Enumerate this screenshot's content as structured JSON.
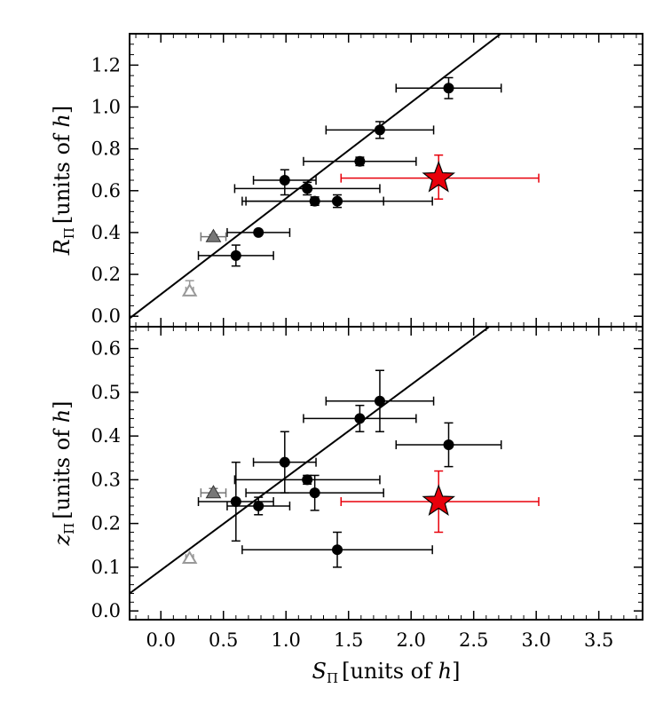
{
  "chart_data": [
    {
      "type": "scatter",
      "panel": "top",
      "ylabel_main": "R",
      "ylabel_sub": "Π",
      "ylabel_rest": "[units of ",
      "ylabel_italic": "h",
      "ylabel_close": "]",
      "xlim": [
        -0.25,
        3.85
      ],
      "ylim": [
        -0.05,
        1.35
      ],
      "yticks": [
        "0.0",
        "0.2",
        "0.4",
        "0.6",
        "0.8",
        "1.0",
        "1.2"
      ],
      "fit_line": {
        "x1": -0.25,
        "y1": -0.01,
        "x2": 3.85,
        "y2": 1.87
      },
      "series": [
        {
          "name": "black points",
          "marker": "circle",
          "color": "#000000",
          "points": [
            {
              "x": 2.3,
              "y": 1.09,
              "xerr": [
                0.42,
                0.42
              ],
              "yerr": [
                0.05,
                0.05
              ]
            },
            {
              "x": 1.75,
              "y": 0.89,
              "xerr": [
                0.43,
                0.43
              ],
              "yerr": [
                0.04,
                0.04
              ]
            },
            {
              "x": 1.59,
              "y": 0.74,
              "xerr": [
                0.45,
                0.45
              ],
              "yerr": [
                0.02,
                0.02
              ]
            },
            {
              "x": 0.99,
              "y": 0.65,
              "xerr": [
                0.25,
                0.25
              ],
              "yerr": [
                0.07,
                0.05
              ]
            },
            {
              "x": 1.17,
              "y": 0.61,
              "xerr": [
                0.58,
                0.58
              ],
              "yerr": [
                0.03,
                0.03
              ]
            },
            {
              "x": 1.23,
              "y": 0.55,
              "xerr": [
                0.55,
                0.55
              ],
              "yerr": [
                0.02,
                0.02
              ]
            },
            {
              "x": 1.41,
              "y": 0.55,
              "xerr": [
                0.76,
                0.76
              ],
              "yerr": [
                0.03,
                0.03
              ]
            },
            {
              "x": 0.78,
              "y": 0.4,
              "xerr": [
                0.25,
                0.25
              ],
              "yerr": [
                0.01,
                0.01
              ]
            },
            {
              "x": 0.6,
              "y": 0.29,
              "xerr": [
                0.3,
                0.3
              ],
              "yerr": [
                0.05,
                0.05
              ]
            }
          ]
        },
        {
          "name": "red star",
          "marker": "star",
          "color": "#e8000b",
          "points": [
            {
              "x": 2.22,
              "y": 0.66,
              "xerr": [
                0.78,
                0.8
              ],
              "yerr": [
                0.1,
                0.11
              ]
            }
          ]
        },
        {
          "name": "gray triangle",
          "marker": "triangle",
          "color": "#777777",
          "points": [
            {
              "x": 0.42,
              "y": 0.38,
              "xerr": [
                0.1,
                0.1
              ],
              "yerr": [
                0.01,
                0.01
              ]
            }
          ]
        },
        {
          "name": "open triangle",
          "marker": "triangle-open",
          "color": "#999999",
          "points": [
            {
              "x": 0.23,
              "y": 0.12,
              "xerr": [
                0.03,
                0.03
              ],
              "yerr": [
                0.02,
                0.05
              ]
            }
          ]
        }
      ]
    },
    {
      "type": "scatter",
      "panel": "bottom",
      "ylabel_main": "z",
      "ylabel_sub": "Π",
      "ylabel_rest": "[units of ",
      "ylabel_italic": "h",
      "ylabel_close": "]",
      "xlabel_main": "S",
      "xlabel_sub": "Π",
      "xlabel_rest": "[units of ",
      "xlabel_italic": "h",
      "xlabel_close": "]",
      "xlim": [
        -0.25,
        3.85
      ],
      "ylim": [
        -0.02,
        0.65
      ],
      "xticks": [
        "0.0",
        "0.5",
        "1.0",
        "1.5",
        "2.0",
        "2.5",
        "3.0",
        "3.5"
      ],
      "yticks": [
        "0.0",
        "0.1",
        "0.2",
        "0.3",
        "0.4",
        "0.5",
        "0.6"
      ],
      "fit_line": {
        "x1": -0.25,
        "y1": 0.04,
        "x2": 3.85,
        "y2": 0.91
      },
      "series": [
        {
          "name": "black points",
          "marker": "circle",
          "color": "#000000",
          "points": [
            {
              "x": 1.75,
              "y": 0.48,
              "xerr": [
                0.43,
                0.43
              ],
              "yerr": [
                0.07,
                0.07
              ]
            },
            {
              "x": 1.59,
              "y": 0.44,
              "xerr": [
                0.45,
                0.45
              ],
              "yerr": [
                0.03,
                0.03
              ]
            },
            {
              "x": 2.3,
              "y": 0.38,
              "xerr": [
                0.42,
                0.42
              ],
              "yerr": [
                0.05,
                0.05
              ]
            },
            {
              "x": 0.99,
              "y": 0.34,
              "xerr": [
                0.25,
                0.25
              ],
              "yerr": [
                0.07,
                0.07
              ]
            },
            {
              "x": 1.17,
              "y": 0.3,
              "xerr": [
                0.58,
                0.58
              ],
              "yerr": [
                0.01,
                0.01
              ]
            },
            {
              "x": 1.23,
              "y": 0.27,
              "xerr": [
                0.55,
                0.55
              ],
              "yerr": [
                0.04,
                0.04
              ]
            },
            {
              "x": 0.6,
              "y": 0.25,
              "xerr": [
                0.3,
                0.3
              ],
              "yerr": [
                0.09,
                0.09
              ]
            },
            {
              "x": 0.78,
              "y": 0.24,
              "xerr": [
                0.25,
                0.25
              ],
              "yerr": [
                0.02,
                0.02
              ]
            },
            {
              "x": 1.41,
              "y": 0.14,
              "xerr": [
                0.76,
                0.76
              ],
              "yerr": [
                0.04,
                0.04
              ]
            }
          ]
        },
        {
          "name": "red star",
          "marker": "star",
          "color": "#e8000b",
          "points": [
            {
              "x": 2.22,
              "y": 0.25,
              "xerr": [
                0.78,
                0.8
              ],
              "yerr": [
                0.07,
                0.07
              ]
            }
          ]
        },
        {
          "name": "gray triangle",
          "marker": "triangle",
          "color": "#777777",
          "points": [
            {
              "x": 0.42,
              "y": 0.27,
              "xerr": [
                0.1,
                0.1
              ],
              "yerr": [
                0.01,
                0.01
              ]
            }
          ]
        },
        {
          "name": "open triangle",
          "marker": "triangle-open",
          "color": "#999999",
          "points": [
            {
              "x": 0.23,
              "y": 0.12,
              "xerr": [
                0.03,
                0.03
              ],
              "yerr": [
                0.005,
                0.005
              ]
            }
          ]
        }
      ]
    }
  ]
}
